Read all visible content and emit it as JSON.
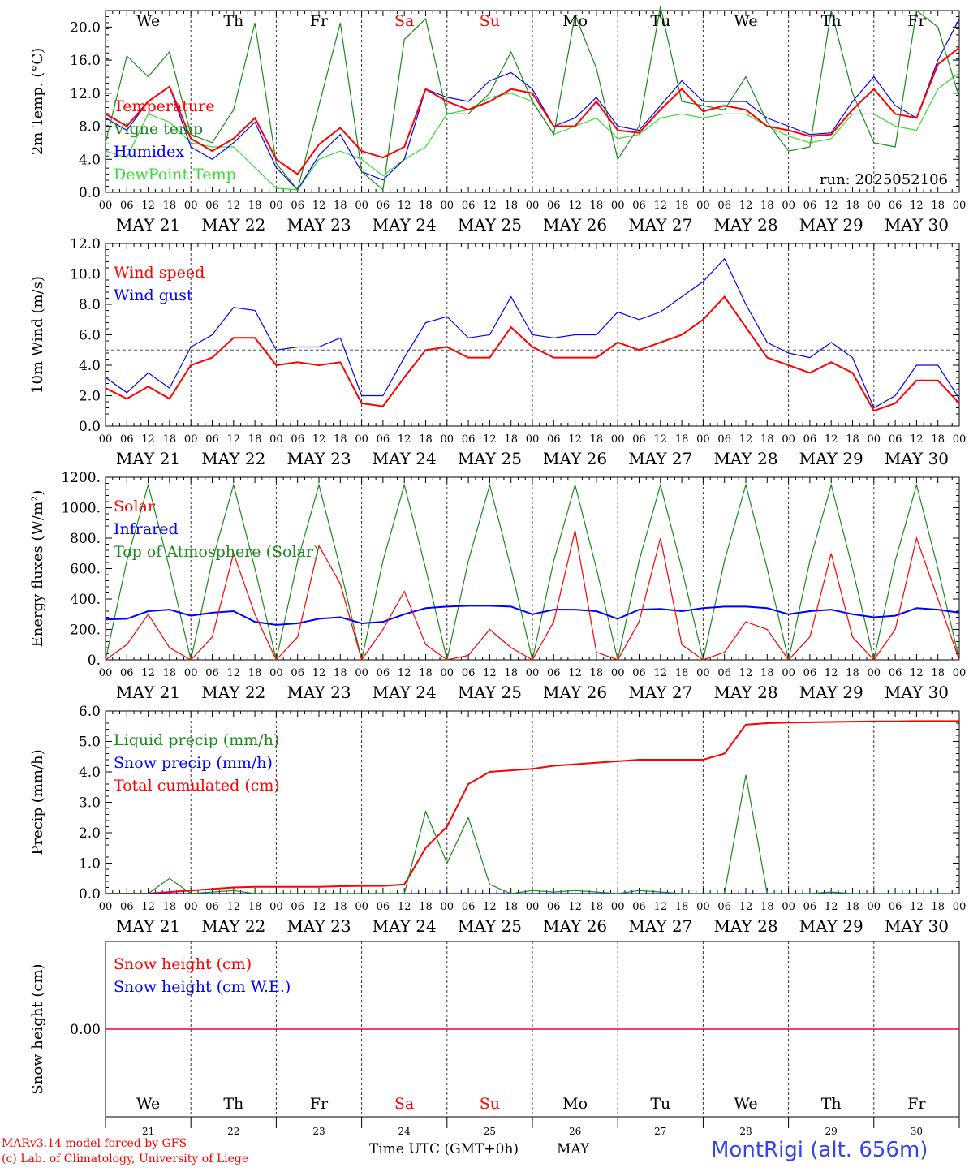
{
  "days": [
    "21",
    "22",
    "23",
    "24",
    "25",
    "26",
    "27",
    "28",
    "29",
    "30"
  ],
  "day_labels": [
    "MAY 21",
    "MAY 22",
    "MAY 23",
    "MAY 24",
    "MAY 25",
    "MAY 26",
    "MAY 27",
    "MAY 28",
    "MAY 29",
    "MAY 30"
  ],
  "hour_labels": [
    "00",
    "06",
    "12",
    "18"
  ],
  "weekdays": [
    "We",
    "Th",
    "Fr",
    "Sa",
    "Su",
    "Mo",
    "Tu",
    "We",
    "Th",
    "Fr"
  ],
  "weekday_colors": [
    "#000000",
    "#000000",
    "#000000",
    "#ff0000",
    "#ff0000",
    "#000000",
    "#000000",
    "#000000",
    "#000000",
    "#000000"
  ],
  "footer": {
    "credit1": "MARv3.14 model forced by GFS",
    "credit2": "(c) Lab. of Climatology, University of Liege",
    "xaxis_title": "Time UTC (GMT+0h)",
    "month": "MAY",
    "station": "MontRigi (alt. 656m)"
  },
  "colors": {
    "red": "#ff0000",
    "green": "#1a8a1a",
    "blue": "#0000ff",
    "lightgreen": "#33dd33",
    "station": "#3344ee"
  },
  "chart_data": [
    {
      "type": "line",
      "ylabel": "2m Temp. (°C)",
      "ylim": [
        0,
        22
      ],
      "yticks": [
        "0.0",
        "4.0",
        "8.0",
        "12.0",
        "16.0",
        "20.0"
      ],
      "annotation": "run: 2025052106",
      "x_hours_from_may21_00": [
        0,
        6,
        12,
        18,
        24,
        30,
        36,
        42,
        48,
        54,
        60,
        66,
        72,
        78,
        84,
        90,
        96,
        102,
        108,
        114,
        120,
        126,
        132,
        138,
        144,
        150,
        156,
        162,
        168,
        174,
        180,
        186,
        192,
        198,
        204,
        210,
        216,
        222,
        228,
        234,
        240
      ],
      "series": [
        {
          "name": "Temperature",
          "color": "red",
          "values": [
            9.5,
            8.0,
            11.0,
            12.8,
            6.5,
            5.0,
            6.5,
            9.0,
            4.0,
            2.2,
            5.8,
            7.8,
            5.0,
            4.2,
            5.5,
            12.5,
            11.0,
            10.0,
            11.0,
            12.5,
            12.0,
            8.0,
            8.0,
            11.0,
            7.5,
            7.2,
            10.0,
            12.5,
            9.8,
            10.5,
            10.0,
            8.0,
            7.5,
            6.8,
            7.0,
            10.0,
            12.5,
            9.5,
            9.0,
            15.5,
            17.5
          ]
        },
        {
          "name": "Vigne temp",
          "color": "green",
          "values": [
            6.0,
            16.5,
            14.0,
            17.0,
            7.0,
            6.0,
            10.0,
            20.5,
            3.5,
            0.3,
            10.5,
            20.5,
            2.5,
            0.3,
            18.5,
            21.0,
            9.5,
            9.5,
            12.0,
            17.0,
            11.0,
            7.0,
            21.5,
            15.0,
            4.0,
            8.0,
            22.5,
            11.0,
            10.5,
            10.0,
            14.0,
            8.5,
            5.0,
            5.5,
            22.0,
            12.0,
            6.0,
            5.5,
            22.0,
            20.0,
            11.5
          ]
        },
        {
          "name": "Humidex",
          "color": "blue",
          "values": [
            9.0,
            7.5,
            11.0,
            12.8,
            5.5,
            4.0,
            6.0,
            8.5,
            3.0,
            0.3,
            4.5,
            7.0,
            2.5,
            1.5,
            4.0,
            12.5,
            11.5,
            11.0,
            13.5,
            14.5,
            12.5,
            8.0,
            9.0,
            11.5,
            8.0,
            7.5,
            10.5,
            13.5,
            11.0,
            11.0,
            11.0,
            9.0,
            8.0,
            7.0,
            7.2,
            11.0,
            14.0,
            10.5,
            9.0,
            16.0,
            21.0
          ]
        },
        {
          "name": "DewPoint Temp",
          "color": "lightgreen",
          "values": [
            5.0,
            4.2,
            9.5,
            8.5,
            6.0,
            5.5,
            5.5,
            3.0,
            0.5,
            0.3,
            4.0,
            5.0,
            4.0,
            2.0,
            4.0,
            5.5,
            9.5,
            10.0,
            11.5,
            12.0,
            11.0,
            7.0,
            8.0,
            9.0,
            6.5,
            7.0,
            9.0,
            9.5,
            9.0,
            9.5,
            9.5,
            8.0,
            6.8,
            6.0,
            6.5,
            9.5,
            9.5,
            8.0,
            7.5,
            12.5,
            14.5
          ]
        }
      ]
    },
    {
      "type": "line",
      "ylabel": "10m Wind (m/s)",
      "ylim": [
        0,
        12
      ],
      "yticks": [
        "0.0",
        "2.0",
        "4.0",
        "6.0",
        "8.0",
        "10.0",
        "12.0"
      ],
      "reference_line": 5.0,
      "x_hours_from_may21_00": [
        0,
        6,
        12,
        18,
        24,
        30,
        36,
        42,
        48,
        54,
        60,
        66,
        72,
        78,
        84,
        90,
        96,
        102,
        108,
        114,
        120,
        126,
        132,
        138,
        144,
        150,
        156,
        162,
        168,
        174,
        180,
        186,
        192,
        198,
        204,
        210,
        216,
        222,
        228,
        234,
        240
      ],
      "series": [
        {
          "name": "Wind speed",
          "color": "red",
          "values": [
            2.5,
            1.8,
            2.6,
            1.8,
            4.0,
            4.5,
            5.8,
            5.8,
            4.0,
            4.2,
            4.0,
            4.2,
            1.5,
            1.3,
            3.2,
            5.0,
            5.2,
            4.5,
            4.5,
            6.5,
            5.2,
            4.5,
            4.5,
            4.5,
            5.5,
            5.0,
            5.5,
            6.0,
            7.0,
            8.5,
            6.5,
            4.5,
            4.0,
            3.5,
            4.2,
            3.5,
            1.0,
            1.5,
            3.0,
            3.0,
            1.5
          ]
        },
        {
          "name": "Wind gust",
          "color": "blue",
          "values": [
            3.2,
            2.2,
            3.5,
            2.5,
            5.2,
            6.0,
            7.8,
            7.6,
            5.0,
            5.2,
            5.2,
            5.8,
            2.0,
            2.0,
            4.5,
            6.8,
            7.2,
            5.8,
            6.0,
            8.5,
            6.0,
            5.8,
            6.0,
            6.0,
            7.5,
            7.0,
            7.5,
            8.5,
            9.5,
            11.0,
            8.0,
            5.5,
            4.8,
            4.5,
            5.5,
            4.5,
            1.2,
            2.0,
            4.0,
            4.0,
            1.8
          ]
        }
      ]
    },
    {
      "type": "line",
      "ylabel": "Energy fluxes (W/m²)",
      "ylim": [
        0,
        1200
      ],
      "yticks": [
        "0.",
        "200.",
        "400.",
        "600.",
        "800.",
        "1000.",
        "1200."
      ],
      "x_hours_from_may21_00": [
        0,
        6,
        12,
        18,
        24,
        30,
        36,
        42,
        48,
        54,
        60,
        66,
        72,
        78,
        84,
        90,
        96,
        102,
        108,
        114,
        120,
        126,
        132,
        138,
        144,
        150,
        156,
        162,
        168,
        174,
        180,
        186,
        192,
        198,
        204,
        210,
        216,
        222,
        228,
        234,
        240
      ],
      "series": [
        {
          "name": "Solar",
          "color": "red",
          "values": [
            0,
            100,
            300,
            80,
            0,
            150,
            700,
            300,
            0,
            150,
            750,
            500,
            0,
            200,
            450,
            100,
            0,
            30,
            200,
            80,
            0,
            250,
            850,
            50,
            0,
            250,
            800,
            100,
            0,
            50,
            250,
            200,
            0,
            150,
            700,
            150,
            0,
            200,
            800,
            400,
            0
          ]
        },
        {
          "name": "Infrared",
          "color": "blue",
          "values": [
            265,
            270,
            320,
            330,
            290,
            310,
            320,
            250,
            230,
            240,
            270,
            280,
            240,
            250,
            300,
            340,
            350,
            355,
            355,
            350,
            300,
            330,
            330,
            320,
            270,
            330,
            335,
            320,
            340,
            350,
            350,
            340,
            300,
            320,
            330,
            300,
            280,
            290,
            340,
            330,
            310
          ]
        },
        {
          "name": "Top of Atmosphere (Solar)",
          "color": "green",
          "values": [
            0,
            650,
            1150,
            600,
            0,
            650,
            1150,
            600,
            0,
            650,
            1150,
            600,
            0,
            650,
            1150,
            600,
            0,
            650,
            1150,
            600,
            0,
            650,
            1150,
            600,
            0,
            650,
            1150,
            600,
            0,
            650,
            1150,
            600,
            0,
            650,
            1150,
            600,
            0,
            650,
            1150,
            600,
            0
          ]
        }
      ]
    },
    {
      "type": "line",
      "ylabel": "Precip (mm/h)",
      "ylim": [
        0,
        6
      ],
      "yticks": [
        "0.0",
        "1.0",
        "2.0",
        "3.0",
        "4.0",
        "5.0",
        "6.0"
      ],
      "x_hours_from_may21_00": [
        0,
        6,
        12,
        18,
        24,
        30,
        36,
        42,
        48,
        54,
        60,
        66,
        72,
        78,
        84,
        90,
        96,
        102,
        108,
        114,
        120,
        126,
        132,
        138,
        144,
        150,
        156,
        162,
        168,
        174,
        180,
        186,
        192,
        198,
        204,
        210,
        216,
        222,
        228,
        234,
        240
      ],
      "series": [
        {
          "name": "Liquid precip (mm/h)",
          "color": "green",
          "values": [
            0,
            0,
            0,
            0.5,
            0,
            0.05,
            0.1,
            0,
            0,
            0,
            0,
            0,
            0,
            0,
            0,
            2.7,
            1.0,
            2.5,
            0.3,
            0,
            0.1,
            0.05,
            0.1,
            0.05,
            0,
            0.1,
            0.05,
            0,
            0,
            0,
            3.9,
            0,
            0,
            0,
            0.05,
            0,
            0,
            0,
            0,
            0,
            0
          ]
        },
        {
          "name": "Snow precip (mm/h)",
          "color": "blue",
          "values": [
            0,
            0,
            0,
            0,
            0,
            0,
            0,
            0,
            0,
            0,
            0,
            0,
            0,
            0,
            0,
            0,
            0,
            0,
            0,
            0,
            0,
            0,
            0,
            0,
            0,
            0,
            0,
            0,
            0,
            0,
            0,
            0,
            0,
            0,
            0,
            0,
            0,
            0,
            0,
            0,
            0
          ]
        },
        {
          "name": "Total cumulated (cm)",
          "color": "red",
          "values": [
            0,
            0,
            0,
            0.05,
            0.1,
            0.15,
            0.2,
            0.22,
            0.22,
            0.22,
            0.22,
            0.24,
            0.25,
            0.25,
            0.3,
            1.5,
            2.2,
            3.6,
            4.0,
            4.05,
            4.1,
            4.2,
            4.25,
            4.3,
            4.35,
            4.4,
            4.4,
            4.4,
            4.4,
            4.6,
            5.55,
            5.6,
            5.62,
            5.63,
            5.64,
            5.65,
            5.66,
            5.66,
            5.67,
            5.67,
            5.67
          ]
        }
      ]
    },
    {
      "type": "line",
      "ylabel": "Snow height (cm)",
      "ylim": [
        -1,
        1
      ],
      "yticks": [
        "0.00"
      ],
      "x_hours_from_may21_00": [
        0,
        240
      ],
      "series": [
        {
          "name": "Snow height (cm)",
          "color": "red",
          "values": [
            0,
            0
          ]
        },
        {
          "name": "Snow height (cm W.E.)",
          "color": "blue",
          "values": [
            0,
            0
          ]
        }
      ]
    }
  ]
}
